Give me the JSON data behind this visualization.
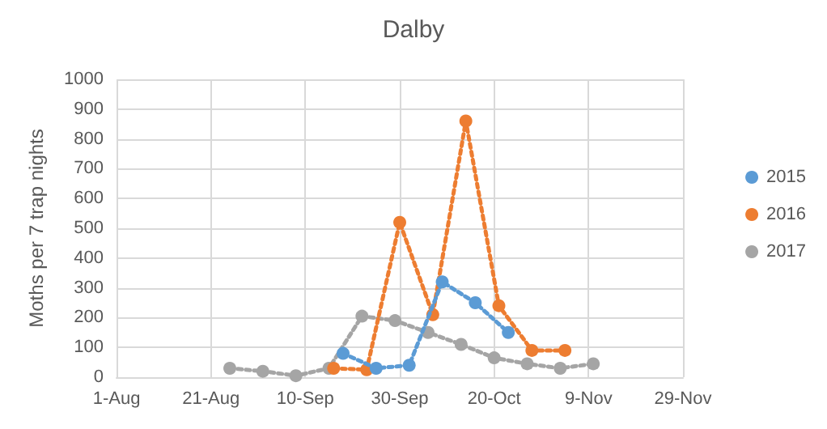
{
  "chart_data": {
    "type": "line",
    "title": "Dalby",
    "ylabel": "Moths per 7 trap nights",
    "series": [
      {
        "name": "2015",
        "color": "#5b9bd5",
        "x": [
          "--09-18",
          "--09-25",
          "--10-02",
          "--10-09",
          "--10-16",
          "--10-23"
        ],
        "values": [
          80,
          30,
          40,
          320,
          250,
          150
        ]
      },
      {
        "name": "2016",
        "color": "#ed7d31",
        "x": [
          "--09-16",
          "--09-23",
          "--09-30",
          "--10-07",
          "--10-14",
          "--10-21",
          "--10-28",
          "--11-04"
        ],
        "values": [
          30,
          25,
          520,
          210,
          860,
          240,
          90,
          90
        ]
      },
      {
        "name": "2017",
        "color": "#a5a5a5",
        "x": [
          "--08-25",
          "--09-01",
          "--09-08",
          "--09-15",
          "--09-22",
          "--09-29",
          "--10-06",
          "--10-13",
          "--10-20",
          "--10-27",
          "--11-03",
          "--11-10"
        ],
        "values": [
          30,
          20,
          5,
          30,
          205,
          190,
          150,
          110,
          65,
          45,
          30,
          45
        ]
      }
    ],
    "xlim": [
      "--08-01",
      "--11-29"
    ],
    "xticks": [
      {
        "value": "--08-01",
        "label": "1-Aug"
      },
      {
        "value": "--08-21",
        "label": "21-Aug"
      },
      {
        "value": "--09-10",
        "label": "10-Sep"
      },
      {
        "value": "--09-30",
        "label": "30-Sep"
      },
      {
        "value": "--10-20",
        "label": "20-Oct"
      },
      {
        "value": "--11-09",
        "label": "9-Nov"
      },
      {
        "value": "--11-29",
        "label": "29-Nov"
      }
    ],
    "ylim": [
      0,
      1000
    ],
    "yticks": [
      0,
      100,
      200,
      300,
      400,
      500,
      600,
      700,
      800,
      900,
      1000
    ],
    "grid": true,
    "legend": "right",
    "marker": "circle",
    "line_style": "dotted"
  }
}
